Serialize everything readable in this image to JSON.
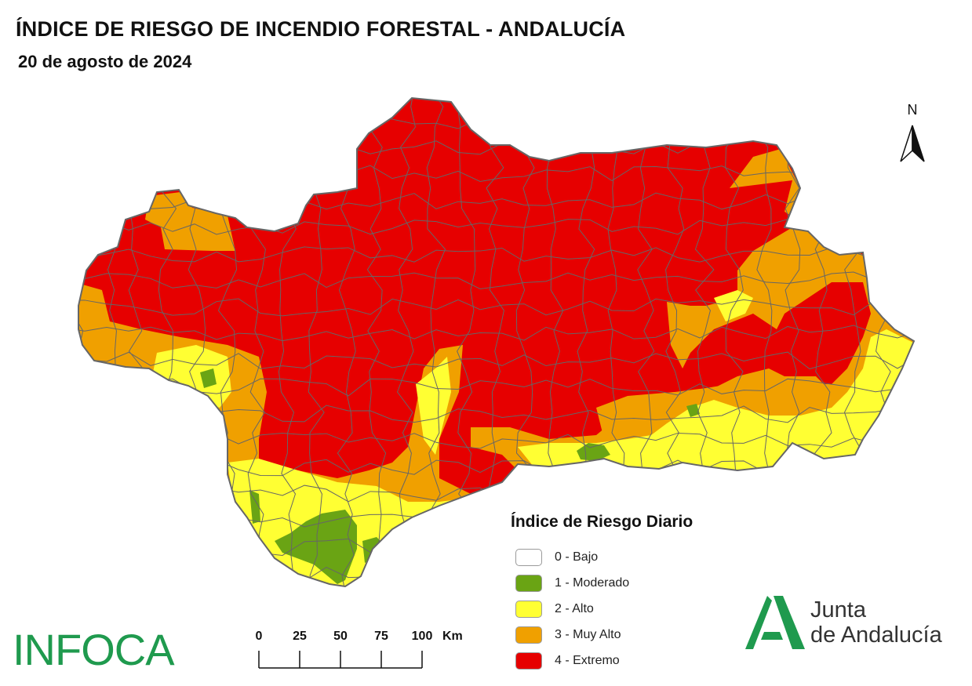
{
  "header": {
    "title": "ÍNDICE DE RIESGO DE INCENDIO FORESTAL - ANDALUCÍA",
    "date": "20 de agosto de 2024"
  },
  "north_arrow": {
    "label": "N"
  },
  "legend": {
    "title": "Índice de Riesgo Diario",
    "items": [
      {
        "label": "0 - Bajo",
        "color": "#ffffff"
      },
      {
        "label": "1 - Moderado",
        "color": "#6aa414"
      },
      {
        "label": "2 - Alto",
        "color": "#ffff33"
      },
      {
        "label": "3 - Muy Alto",
        "color": "#f0a000"
      },
      {
        "label": "4 - Extremo",
        "color": "#e60000"
      }
    ]
  },
  "scale_bar": {
    "ticks": [
      "0",
      "25",
      "50",
      "75",
      "100"
    ],
    "unit": "Km"
  },
  "logos": {
    "infoca": "INFOCA",
    "junta_line1": "Junta",
    "junta_line2": "de Andalucía",
    "junta_color": "#1f9a4e"
  },
  "colors": {
    "extremo": "#e60000",
    "muy_alto": "#f0a000",
    "alto": "#ffff33",
    "moderado": "#6aa414",
    "border": "#666666"
  }
}
